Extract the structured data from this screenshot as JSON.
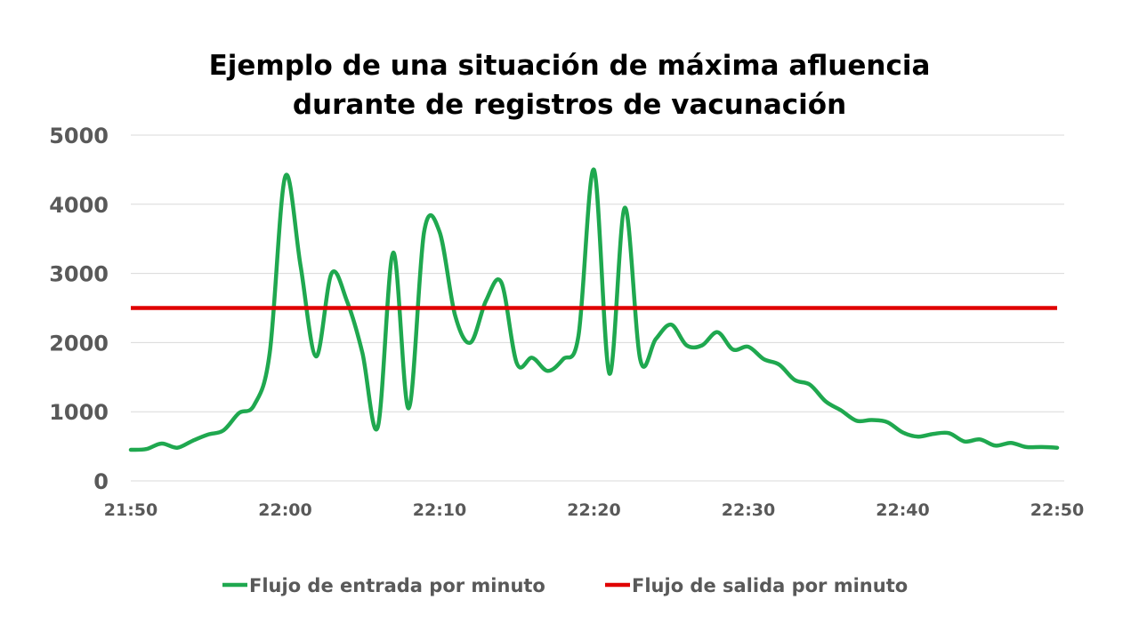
{
  "chart_data": {
    "type": "line",
    "title_lines": [
      "Ejemplo de una situación de máxima afluencia",
      "durante de registros de vacunación"
    ],
    "xlabel": "",
    "ylabel": "",
    "ylim": [
      0,
      5000
    ],
    "yticks": [
      "0",
      "1000",
      "2000",
      "3000",
      "4000",
      "5000"
    ],
    "xticks": [
      "21:50",
      "22:00",
      "22:10",
      "22:20",
      "22:30",
      "22:40",
      "22:50"
    ],
    "grid": true,
    "legend_position": "bottom",
    "colors": {
      "entrada": "#1fa84f",
      "salida": "#e00000",
      "grid": "#d9d9d9",
      "text": "#595959"
    },
    "x_minutes_from_2150": [
      0,
      1,
      2,
      3,
      4,
      5,
      6,
      7,
      8,
      9,
      10,
      11,
      12,
      13,
      14,
      15,
      16,
      17,
      18,
      19,
      20,
      21,
      22,
      23,
      24,
      25,
      26,
      27,
      28,
      29,
      30,
      31,
      32,
      33,
      34,
      35,
      36,
      37,
      38,
      39,
      40,
      41,
      42,
      43,
      44,
      45,
      46,
      47,
      48,
      49,
      50,
      51,
      52,
      53,
      54,
      55,
      56,
      57,
      58,
      59,
      60
    ],
    "series": [
      {
        "name": "Flujo de entrada por minuto",
        "values": [
          450,
          460,
          540,
          480,
          580,
          670,
          730,
          980,
          1100,
          1850,
          4400,
          3100,
          1800,
          3000,
          2600,
          1850,
          780,
          3300,
          1050,
          3600,
          3600,
          2400,
          2000,
          2600,
          2870,
          1700,
          1780,
          1590,
          1760,
          2100,
          4500,
          1550,
          3950,
          1750,
          2050,
          2260,
          1960,
          1960,
          2150,
          1900,
          1940,
          1760,
          1680,
          1460,
          1390,
          1150,
          1020,
          870,
          880,
          850,
          700,
          640,
          680,
          690,
          570,
          600,
          510,
          550,
          490,
          490,
          480
        ]
      },
      {
        "name": "Flujo de salida por minuto",
        "values": [
          2500,
          2500
        ]
      }
    ]
  }
}
